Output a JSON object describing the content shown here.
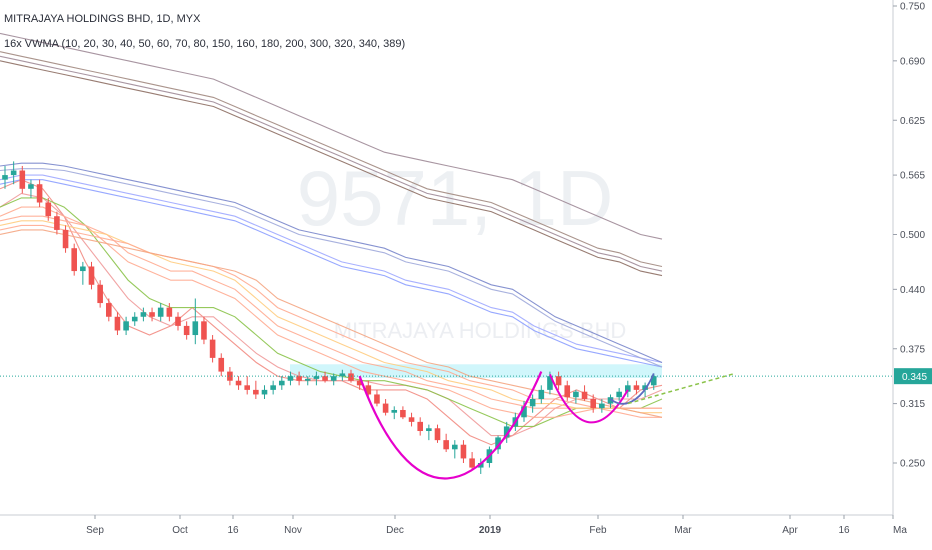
{
  "chart_data": {
    "type": "candlestick",
    "title": "MITRAJAYA HOLDINGS BHD, 1D, MYX",
    "subtitle": "16x VWMA (10, 20, 30, 40, 50, 60, 70, 80, 150, 160, 180, 200, 300, 320, 340, 389)",
    "watermark_symbol": "9571, 1D",
    "watermark_name": "MITRAJAYA HOLDINGS BHD",
    "y_ticks": [
      "0.750",
      "0.690",
      "0.625",
      "0.565",
      "0.500",
      "0.440",
      "0.375",
      "0.315",
      "0.250"
    ],
    "x_ticks": [
      "Sep",
      "Oct",
      "16",
      "Nov",
      "Dec",
      "2019",
      "Feb",
      "Mar",
      "Apr",
      "16",
      "Ma"
    ],
    "ylim": [
      0.18,
      0.77
    ],
    "last_price": "0.345",
    "colors": {
      "up": "#26a69a",
      "down": "#ef5350",
      "cup": "#e600cc",
      "last_price_line": "#26a69a",
      "highlight_band": "#c8f5fa",
      "trend": "#8bc34a"
    },
    "series": [
      {
        "period": "10",
        "color": "#f28b82",
        "values": [
          0.55,
          0.56,
          0.55,
          0.52,
          0.47,
          0.43,
          0.4,
          0.39,
          0.4,
          0.42,
          0.4,
          0.38,
          0.36,
          0.345,
          0.34,
          0.34,
          0.34,
          0.33,
          0.33,
          0.33,
          0.32,
          0.3,
          0.28,
          0.27,
          0.28,
          0.3,
          0.32,
          0.33,
          0.32,
          0.31,
          0.33,
          0.335
        ]
      },
      {
        "period": "20",
        "color": "#ef9a9a",
        "values": [
          0.53,
          0.545,
          0.54,
          0.52,
          0.49,
          0.46,
          0.43,
          0.41,
          0.4,
          0.41,
          0.41,
          0.39,
          0.37,
          0.355,
          0.345,
          0.34,
          0.34,
          0.34,
          0.335,
          0.335,
          0.33,
          0.32,
          0.3,
          0.28,
          0.28,
          0.29,
          0.31,
          0.32,
          0.32,
          0.32,
          0.32,
          0.33
        ]
      },
      {
        "period": "30",
        "color": "#8bc34a",
        "values": [
          0.53,
          0.54,
          0.54,
          0.53,
          0.51,
          0.48,
          0.45,
          0.43,
          0.42,
          0.42,
          0.42,
          0.41,
          0.39,
          0.37,
          0.36,
          0.35,
          0.345,
          0.34,
          0.34,
          0.335,
          0.33,
          0.32,
          0.31,
          0.3,
          0.29,
          0.29,
          0.3,
          0.31,
          0.31,
          0.31,
          0.31,
          0.32
        ]
      },
      {
        "period": "40",
        "color": "#ffab91",
        "values": [
          0.52,
          0.53,
          0.53,
          0.52,
          0.51,
          0.49,
          0.47,
          0.46,
          0.45,
          0.45,
          0.44,
          0.43,
          0.41,
          0.39,
          0.38,
          0.37,
          0.36,
          0.35,
          0.345,
          0.34,
          0.335,
          0.33,
          0.32,
          0.31,
          0.305,
          0.3,
          0.3,
          0.305,
          0.31,
          0.31,
          0.31,
          0.31
        ]
      },
      {
        "period": "50",
        "color": "#ffab91",
        "values": [
          0.515,
          0.52,
          0.52,
          0.515,
          0.51,
          0.5,
          0.48,
          0.47,
          0.46,
          0.46,
          0.45,
          0.44,
          0.42,
          0.4,
          0.39,
          0.38,
          0.37,
          0.36,
          0.355,
          0.35,
          0.34,
          0.335,
          0.33,
          0.32,
          0.315,
          0.31,
          0.31,
          0.31,
          0.31,
          0.31,
          0.31,
          0.31
        ]
      },
      {
        "period": "60",
        "color": "#ffcc80",
        "values": [
          0.51,
          0.515,
          0.515,
          0.51,
          0.505,
          0.5,
          0.49,
          0.48,
          0.47,
          0.465,
          0.46,
          0.45,
          0.43,
          0.41,
          0.4,
          0.39,
          0.38,
          0.37,
          0.36,
          0.355,
          0.35,
          0.34,
          0.335,
          0.33,
          0.32,
          0.315,
          0.315,
          0.31,
          0.31,
          0.31,
          0.305,
          0.305
        ]
      },
      {
        "period": "70",
        "color": "#ffab91",
        "values": [
          0.505,
          0.51,
          0.51,
          0.505,
          0.5,
          0.495,
          0.49,
          0.48,
          0.475,
          0.47,
          0.465,
          0.455,
          0.44,
          0.42,
          0.41,
          0.4,
          0.39,
          0.38,
          0.37,
          0.36,
          0.355,
          0.35,
          0.34,
          0.335,
          0.33,
          0.32,
          0.32,
          0.315,
          0.31,
          0.305,
          0.3,
          0.3
        ]
      },
      {
        "period": "80",
        "color": "#f4a582",
        "values": [
          0.5,
          0.505,
          0.505,
          0.5,
          0.495,
          0.49,
          0.485,
          0.48,
          0.475,
          0.47,
          0.465,
          0.46,
          0.45,
          0.43,
          0.42,
          0.41,
          0.4,
          0.39,
          0.38,
          0.37,
          0.36,
          0.355,
          0.345,
          0.34,
          0.335,
          0.33,
          0.325,
          0.32,
          0.315,
          0.31,
          0.305,
          0.3
        ]
      },
      {
        "period": "150",
        "color": "#9fa8ff",
        "values": [
          0.56,
          0.565,
          0.565,
          0.56,
          0.555,
          0.55,
          0.545,
          0.54,
          0.535,
          0.53,
          0.525,
          0.52,
          0.51,
          0.5,
          0.49,
          0.48,
          0.47,
          0.465,
          0.46,
          0.45,
          0.445,
          0.44,
          0.43,
          0.42,
          0.415,
          0.4,
          0.39,
          0.38,
          0.375,
          0.37,
          0.365,
          0.36
        ]
      },
      {
        "period": "160",
        "color": "#8c9eff",
        "values": [
          0.555,
          0.56,
          0.56,
          0.555,
          0.55,
          0.545,
          0.54,
          0.535,
          0.53,
          0.525,
          0.52,
          0.515,
          0.505,
          0.495,
          0.485,
          0.475,
          0.465,
          0.46,
          0.455,
          0.445,
          0.44,
          0.435,
          0.425,
          0.415,
          0.41,
          0.395,
          0.385,
          0.375,
          0.37,
          0.365,
          0.36,
          0.355
        ]
      },
      {
        "period": "180",
        "color": "#7986cb",
        "values": [
          0.575,
          0.578,
          0.578,
          0.575,
          0.57,
          0.565,
          0.56,
          0.555,
          0.55,
          0.545,
          0.54,
          0.535,
          0.525,
          0.515,
          0.505,
          0.5,
          0.495,
          0.49,
          0.485,
          0.475,
          0.47,
          0.465,
          0.455,
          0.445,
          0.44,
          0.425,
          0.41,
          0.4,
          0.39,
          0.38,
          0.37,
          0.36
        ]
      },
      {
        "period": "200",
        "color": "#9fa8da",
        "values": [
          0.57,
          0.572,
          0.572,
          0.57,
          0.565,
          0.56,
          0.555,
          0.55,
          0.545,
          0.54,
          0.535,
          0.53,
          0.52,
          0.51,
          0.5,
          0.495,
          0.49,
          0.485,
          0.48,
          0.47,
          0.465,
          0.46,
          0.45,
          0.44,
          0.435,
          0.42,
          0.405,
          0.395,
          0.385,
          0.375,
          0.365,
          0.355
        ]
      },
      {
        "period": "300",
        "color": "#9e8a97",
        "values": [
          0.72,
          0.715,
          0.71,
          0.705,
          0.7,
          0.695,
          0.69,
          0.685,
          0.68,
          0.675,
          0.67,
          0.66,
          0.65,
          0.64,
          0.63,
          0.62,
          0.61,
          0.6,
          0.59,
          0.585,
          0.58,
          0.575,
          0.57,
          0.565,
          0.56,
          0.55,
          0.54,
          0.53,
          0.52,
          0.51,
          0.5,
          0.495
        ]
      },
      {
        "period": "320",
        "color": "#a1887f",
        "values": [
          0.7,
          0.695,
          0.69,
          0.685,
          0.68,
          0.675,
          0.67,
          0.665,
          0.66,
          0.655,
          0.65,
          0.64,
          0.63,
          0.62,
          0.61,
          0.6,
          0.59,
          0.58,
          0.57,
          0.56,
          0.55,
          0.545,
          0.54,
          0.535,
          0.525,
          0.515,
          0.505,
          0.495,
          0.485,
          0.48,
          0.47,
          0.465
        ]
      },
      {
        "period": "340",
        "color": "#9e8a97",
        "values": [
          0.695,
          0.69,
          0.685,
          0.68,
          0.675,
          0.67,
          0.665,
          0.66,
          0.655,
          0.65,
          0.645,
          0.635,
          0.625,
          0.615,
          0.605,
          0.595,
          0.585,
          0.575,
          0.565,
          0.555,
          0.545,
          0.54,
          0.535,
          0.53,
          0.52,
          0.51,
          0.5,
          0.49,
          0.48,
          0.475,
          0.465,
          0.46
        ]
      },
      {
        "period": "389",
        "color": "#8d6e63",
        "values": [
          0.69,
          0.685,
          0.68,
          0.675,
          0.67,
          0.665,
          0.66,
          0.655,
          0.65,
          0.645,
          0.64,
          0.63,
          0.62,
          0.61,
          0.6,
          0.59,
          0.58,
          0.57,
          0.56,
          0.55,
          0.54,
          0.535,
          0.53,
          0.525,
          0.515,
          0.505,
          0.495,
          0.485,
          0.475,
          0.47,
          0.46,
          0.455
        ]
      }
    ],
    "candles": [
      [
        0.56,
        0.575,
        0.55,
        0.565
      ],
      [
        0.565,
        0.58,
        0.555,
        0.57
      ],
      [
        0.57,
        0.575,
        0.545,
        0.55
      ],
      [
        0.55,
        0.56,
        0.54,
        0.555
      ],
      [
        0.555,
        0.56,
        0.53,
        0.535
      ],
      [
        0.535,
        0.54,
        0.515,
        0.52
      ],
      [
        0.52,
        0.525,
        0.5,
        0.505
      ],
      [
        0.505,
        0.51,
        0.48,
        0.485
      ],
      [
        0.485,
        0.49,
        0.455,
        0.46
      ],
      [
        0.46,
        0.47,
        0.445,
        0.465
      ],
      [
        0.465,
        0.47,
        0.44,
        0.445
      ],
      [
        0.445,
        0.45,
        0.42,
        0.425
      ],
      [
        0.425,
        0.43,
        0.405,
        0.41
      ],
      [
        0.41,
        0.415,
        0.39,
        0.395
      ],
      [
        0.395,
        0.41,
        0.39,
        0.405
      ],
      [
        0.405,
        0.415,
        0.4,
        0.41
      ],
      [
        0.41,
        0.42,
        0.405,
        0.415
      ],
      [
        0.415,
        0.42,
        0.405,
        0.41
      ],
      [
        0.41,
        0.425,
        0.405,
        0.42
      ],
      [
        0.42,
        0.425,
        0.405,
        0.41
      ],
      [
        0.41,
        0.415,
        0.395,
        0.4
      ],
      [
        0.4,
        0.405,
        0.385,
        0.39
      ],
      [
        0.39,
        0.43,
        0.38,
        0.405
      ],
      [
        0.405,
        0.41,
        0.38,
        0.385
      ],
      [
        0.385,
        0.39,
        0.36,
        0.365
      ],
      [
        0.365,
        0.37,
        0.345,
        0.35
      ],
      [
        0.35,
        0.355,
        0.335,
        0.34
      ],
      [
        0.34,
        0.345,
        0.33,
        0.335
      ],
      [
        0.335,
        0.345,
        0.325,
        0.33
      ],
      [
        0.33,
        0.34,
        0.32,
        0.325
      ],
      [
        0.325,
        0.335,
        0.32,
        0.33
      ],
      [
        0.33,
        0.34,
        0.325,
        0.335
      ],
      [
        0.335,
        0.345,
        0.33,
        0.34
      ],
      [
        0.34,
        0.35,
        0.335,
        0.345
      ],
      [
        0.345,
        0.35,
        0.335,
        0.34
      ],
      [
        0.34,
        0.345,
        0.335,
        0.342
      ],
      [
        0.342,
        0.35,
        0.335,
        0.345
      ],
      [
        0.345,
        0.35,
        0.338,
        0.34
      ],
      [
        0.34,
        0.348,
        0.335,
        0.345
      ],
      [
        0.345,
        0.352,
        0.34,
        0.348
      ],
      [
        0.348,
        0.352,
        0.338,
        0.34
      ],
      [
        0.34,
        0.345,
        0.33,
        0.335
      ],
      [
        0.335,
        0.34,
        0.32,
        0.325
      ],
      [
        0.325,
        0.33,
        0.312,
        0.315
      ],
      [
        0.315,
        0.32,
        0.302,
        0.305
      ],
      [
        0.305,
        0.312,
        0.298,
        0.308
      ],
      [
        0.308,
        0.312,
        0.298,
        0.3
      ],
      [
        0.3,
        0.305,
        0.29,
        0.295
      ],
      [
        0.295,
        0.3,
        0.28,
        0.285
      ],
      [
        0.285,
        0.292,
        0.275,
        0.288
      ],
      [
        0.288,
        0.292,
        0.272,
        0.275
      ],
      [
        0.275,
        0.282,
        0.262,
        0.265
      ],
      [
        0.265,
        0.275,
        0.255,
        0.27
      ],
      [
        0.27,
        0.275,
        0.25,
        0.255
      ],
      [
        0.255,
        0.262,
        0.242,
        0.245
      ],
      [
        0.245,
        0.255,
        0.238,
        0.25
      ],
      [
        0.25,
        0.268,
        0.245,
        0.265
      ],
      [
        0.265,
        0.28,
        0.26,
        0.278
      ],
      [
        0.278,
        0.295,
        0.272,
        0.29
      ],
      [
        0.29,
        0.305,
        0.285,
        0.3
      ],
      [
        0.3,
        0.318,
        0.295,
        0.312
      ],
      [
        0.312,
        0.325,
        0.305,
        0.32
      ],
      [
        0.32,
        0.335,
        0.315,
        0.33
      ],
      [
        0.33,
        0.35,
        0.325,
        0.345
      ],
      [
        0.345,
        0.35,
        0.33,
        0.335
      ],
      [
        0.335,
        0.34,
        0.318,
        0.322
      ],
      [
        0.322,
        0.33,
        0.315,
        0.328
      ],
      [
        0.328,
        0.335,
        0.318,
        0.32
      ],
      [
        0.32,
        0.325,
        0.305,
        0.31
      ],
      [
        0.31,
        0.32,
        0.305,
        0.315
      ],
      [
        0.315,
        0.325,
        0.31,
        0.322
      ],
      [
        0.322,
        0.332,
        0.318,
        0.328
      ],
      [
        0.328,
        0.34,
        0.322,
        0.335
      ],
      [
        0.335,
        0.34,
        0.325,
        0.33
      ],
      [
        0.33,
        0.338,
        0.322,
        0.335
      ],
      [
        0.335,
        0.348,
        0.33,
        0.345
      ]
    ]
  }
}
